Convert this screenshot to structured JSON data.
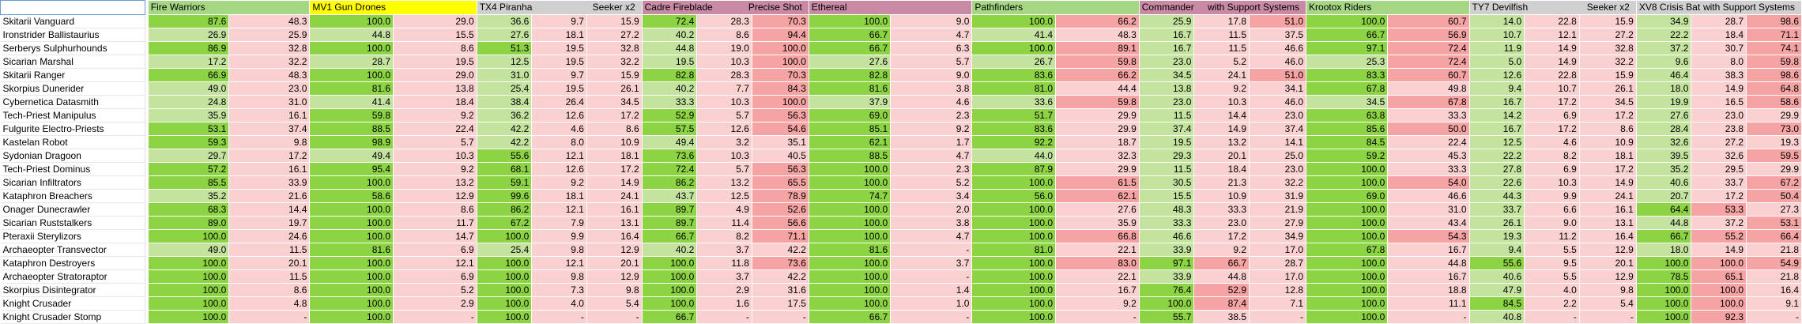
{
  "colors": {
    "win_main": "#8dd445",
    "win_light": "#c4e39f",
    "loss_main": "#f5a3a3",
    "loss_light": "#fbd0d0",
    "header_green": "#a6d785",
    "header_yellow": "#ffff00",
    "header_gray": "#d0d0d0",
    "header_pink": "#c98aa6"
  },
  "header": {
    "groups": [
      {
        "name": "Fire Warriors",
        "sub": "",
        "color": "hg"
      },
      {
        "name": "MV1 Gun Drones",
        "sub": "",
        "color": "hy"
      },
      {
        "name": "TX4 Piranha",
        "sub": "Seeker x2",
        "color": "hgr"
      },
      {
        "name": "Cadre Fireblade",
        "sub": "Precise Shot",
        "color": "hp"
      },
      {
        "name": "Ethereal",
        "sub": "",
        "color": "hp"
      },
      {
        "name": "Pathfinders",
        "sub": "",
        "color": "hg"
      },
      {
        "name": "Commander",
        "sub": "with Support Systems",
        "color": "hp"
      },
      {
        "name": "Krootox Riders",
        "sub": "",
        "color": "hg"
      },
      {
        "name": "TY7 Devilfish",
        "sub": "Seeker x2",
        "color": "hgr"
      },
      {
        "name": "XV8 Crisis Bat",
        "sub": "with Support Systems",
        "color": "hgr"
      }
    ]
  },
  "rows": [
    {
      "name": "Skitarii Vanguard",
      "v": [
        "87.6",
        "48.3",
        "100.0",
        "29.0",
        "36.6",
        "9.7",
        "15.9",
        "72.4",
        "28.3",
        "70.3",
        "100.0",
        "9.0",
        "100.0",
        "66.2",
        "25.9",
        "17.8",
        "51.0",
        "100.0",
        "60.7",
        "14.0",
        "22.8",
        "15.9",
        "34.9",
        "28.7",
        "98.6"
      ]
    },
    {
      "name": "Ironstrider Ballistaurius",
      "v": [
        "26.9",
        "25.9",
        "44.8",
        "15.5",
        "27.6",
        "18.1",
        "27.2",
        "40.2",
        "8.6",
        "94.4",
        "66.7",
        "4.7",
        "41.4",
        "48.3",
        "16.7",
        "11.5",
        "37.5",
        "66.7",
        "56.9",
        "10.7",
        "12.1",
        "27.2",
        "22.2",
        "18.4",
        "71.1"
      ]
    },
    {
      "name": "Serberys Sulphurhounds",
      "v": [
        "86.9",
        "32.8",
        "100.0",
        "8.6",
        "51.3",
        "19.5",
        "32.8",
        "44.8",
        "19.0",
        "100.0",
        "66.7",
        "6.3",
        "100.0",
        "89.1",
        "16.7",
        "11.5",
        "46.6",
        "97.1",
        "72.4",
        "11.9",
        "14.9",
        "32.8",
        "37.2",
        "30.7",
        "74.1"
      ]
    },
    {
      "name": "Sicarian Marshal",
      "v": [
        "17.2",
        "32.2",
        "28.7",
        "19.5",
        "12.5",
        "19.5",
        "32.2",
        "19.5",
        "10.3",
        "100.0",
        "27.6",
        "5.7",
        "26.7",
        "59.8",
        "23.0",
        "5.2",
        "46.0",
        "25.3",
        "72.4",
        "5.0",
        "14.9",
        "32.2",
        "9.6",
        "8.0",
        "59.8"
      ]
    },
    {
      "name": "Skitarii Ranger",
      "v": [
        "66.9",
        "48.3",
        "100.0",
        "29.0",
        "31.0",
        "9.7",
        "15.9",
        "82.8",
        "28.3",
        "70.3",
        "82.8",
        "9.0",
        "83.6",
        "66.2",
        "34.5",
        "24.1",
        "51.0",
        "83.3",
        "60.7",
        "12.6",
        "22.8",
        "15.9",
        "46.4",
        "38.3",
        "98.6"
      ]
    },
    {
      "name": "Skorpius Dunerider",
      "v": [
        "49.0",
        "23.0",
        "81.6",
        "13.8",
        "25.4",
        "19.5",
        "26.1",
        "40.2",
        "7.7",
        "84.3",
        "81.6",
        "3.8",
        "81.0",
        "44.4",
        "13.8",
        "9.2",
        "34.1",
        "67.8",
        "49.8",
        "9.4",
        "10.7",
        "26.1",
        "18.0",
        "14.9",
        "64.8"
      ]
    },
    {
      "name": "Cybernetica Datasmith",
      "v": [
        "24.8",
        "31.0",
        "41.4",
        "18.4",
        "38.4",
        "26.4",
        "34.5",
        "33.3",
        "10.3",
        "100.0",
        "37.9",
        "4.6",
        "33.6",
        "59.8",
        "23.0",
        "10.3",
        "46.0",
        "34.5",
        "67.8",
        "16.7",
        "17.2",
        "34.5",
        "19.9",
        "16.5",
        "58.6"
      ]
    },
    {
      "name": "Tech-Priest Manipulus",
      "v": [
        "35.9",
        "16.1",
        "59.8",
        "9.2",
        "36.2",
        "12.6",
        "17.2",
        "52.9",
        "5.7",
        "56.3",
        "69.0",
        "2.3",
        "51.7",
        "29.9",
        "11.5",
        "14.4",
        "23.0",
        "63.8",
        "33.3",
        "14.2",
        "6.9",
        "17.2",
        "27.6",
        "23.0",
        "29.9"
      ]
    },
    {
      "name": "Fulgurite Electro-Priests",
      "v": [
        "53.1",
        "37.4",
        "88.5",
        "22.4",
        "42.2",
        "4.6",
        "8.6",
        "57.5",
        "12.6",
        "54.6",
        "85.1",
        "9.2",
        "83.6",
        "29.9",
        "37.4",
        "14.9",
        "37.4",
        "85.6",
        "50.0",
        "16.7",
        "17.2",
        "8.6",
        "28.4",
        "23.8",
        "73.0"
      ]
    },
    {
      "name": "Kastelan Robot",
      "v": [
        "59.3",
        "9.8",
        "98.9",
        "5.7",
        "42.2",
        "8.0",
        "10.9",
        "49.4",
        "3.2",
        "35.1",
        "62.1",
        "1.7",
        "92.2",
        "18.7",
        "19.5",
        "13.2",
        "14.1",
        "84.5",
        "22.4",
        "12.5",
        "4.6",
        "10.9",
        "32.6",
        "27.2",
        "19.3"
      ]
    },
    {
      "name": "Sydonian Dragoon",
      "v": [
        "29.7",
        "17.2",
        "49.4",
        "10.3",
        "55.6",
        "12.1",
        "18.1",
        "73.6",
        "10.3",
        "40.5",
        "88.5",
        "4.7",
        "44.0",
        "32.3",
        "29.3",
        "20.1",
        "25.0",
        "59.2",
        "45.3",
        "22.2",
        "8.2",
        "18.1",
        "39.5",
        "32.6",
        "59.5"
      ]
    },
    {
      "name": "Tech-Priest Dominus",
      "v": [
        "57.2",
        "16.1",
        "95.4",
        "9.2",
        "68.1",
        "12.6",
        "17.2",
        "72.4",
        "5.7",
        "56.3",
        "100.0",
        "2.3",
        "87.9",
        "29.9",
        "11.5",
        "18.4",
        "23.0",
        "100.0",
        "33.3",
        "27.8",
        "6.9",
        "17.2",
        "35.2",
        "29.5",
        "29.9"
      ]
    },
    {
      "name": "Sicarian Infiltrators",
      "v": [
        "85.5",
        "33.9",
        "100.0",
        "13.2",
        "59.1",
        "9.2",
        "14.9",
        "86.2",
        "13.2",
        "65.5",
        "100.0",
        "5.2",
        "100.0",
        "61.5",
        "30.5",
        "21.3",
        "32.2",
        "100.0",
        "54.0",
        "22.6",
        "10.3",
        "14.9",
        "40.6",
        "33.7",
        "67.2"
      ]
    },
    {
      "name": "Kataphron Breachers",
      "v": [
        "35.2",
        "21.6",
        "58.6",
        "12.9",
        "99.6",
        "18.1",
        "24.1",
        "43.7",
        "12.5",
        "78.9",
        "74.7",
        "3.4",
        "56.0",
        "62.1",
        "15.5",
        "10.9",
        "31.9",
        "69.0",
        "46.6",
        "44.3",
        "9.9",
        "24.1",
        "20.7",
        "17.2",
        "50.4"
      ]
    },
    {
      "name": "Onager Dunecrawler",
      "v": [
        "68.3",
        "14.4",
        "100.0",
        "8.6",
        "86.2",
        "12.1",
        "16.1",
        "89.7",
        "4.9",
        "52.6",
        "100.0",
        "2.0",
        "100.0",
        "27.6",
        "48.3",
        "33.3",
        "21.9",
        "100.0",
        "31.0",
        "33.7",
        "6.6",
        "16.1",
        "64.4",
        "53.3",
        "27.3"
      ]
    },
    {
      "name": "Sicarian Ruststalkers",
      "v": [
        "89.0",
        "19.7",
        "100.0",
        "11.7",
        "67.2",
        "7.9",
        "13.1",
        "89.7",
        "11.4",
        "56.6",
        "100.0",
        "3.8",
        "100.0",
        "35.9",
        "33.3",
        "23.0",
        "27.9",
        "100.0",
        "43.4",
        "26.1",
        "9.0",
        "13.1",
        "44.8",
        "37.2",
        "53.1"
      ]
    },
    {
      "name": "Pteraxii Sterylizors",
      "v": [
        "100.0",
        "24.6",
        "100.0",
        "14.7",
        "100.0",
        "9.9",
        "16.4",
        "66.7",
        "8.2",
        "71.1",
        "100.0",
        "4.7",
        "100.0",
        "66.8",
        "46.6",
        "17.2",
        "34.9",
        "100.0",
        "54.3",
        "19.3",
        "11.2",
        "16.4",
        "66.7",
        "55.2",
        "66.4"
      ]
    },
    {
      "name": "Archaeopter Transvector",
      "v": [
        "49.0",
        "11.5",
        "81.6",
        "6.9",
        "25.4",
        "9.8",
        "12.9",
        "40.2",
        "3.7",
        "42.2",
        "81.6",
        "-",
        "81.0",
        "22.1",
        "33.9",
        "9.2",
        "17.0",
        "67.8",
        "16.7",
        "9.4",
        "5.5",
        "12.9",
        "18.0",
        "14.9",
        "21.8"
      ]
    },
    {
      "name": "Kataphron Destroyers",
      "v": [
        "100.0",
        "20.1",
        "100.0",
        "12.1",
        "100.0",
        "12.1",
        "20.1",
        "100.0",
        "11.8",
        "73.6",
        "100.0",
        "3.7",
        "100.0",
        "83.0",
        "97.1",
        "66.7",
        "28.7",
        "100.0",
        "44.8",
        "55.6",
        "9.5",
        "20.1",
        "100.0",
        "100.0",
        "54.9"
      ]
    },
    {
      "name": "Archaeopter Stratoraptor",
      "v": [
        "100.0",
        "11.5",
        "100.0",
        "6.9",
        "100.0",
        "9.8",
        "12.9",
        "100.0",
        "3.7",
        "42.2",
        "100.0",
        "-",
        "100.0",
        "22.1",
        "33.9",
        "44.8",
        "17.0",
        "100.0",
        "16.7",
        "40.6",
        "5.5",
        "12.9",
        "78.5",
        "65.1",
        "21.8"
      ]
    },
    {
      "name": "Skorpius Disintegrator",
      "v": [
        "100.0",
        "8.6",
        "100.0",
        "5.2",
        "100.0",
        "7.3",
        "9.8",
        "100.0",
        "2.9",
        "31.6",
        "100.0",
        "1.4",
        "100.0",
        "16.7",
        "76.4",
        "52.9",
        "12.8",
        "100.0",
        "18.8",
        "47.9",
        "4.0",
        "9.8",
        "100.0",
        "100.0",
        "16.4"
      ]
    },
    {
      "name": "Knight Crusader",
      "v": [
        "100.0",
        "4.8",
        "100.0",
        "2.9",
        "100.0",
        "4.0",
        "5.4",
        "100.0",
        "1.6",
        "17.5",
        "100.0",
        "1.0",
        "100.0",
        "9.2",
        "100.0",
        "87.4",
        "7.1",
        "100.0",
        "11.1",
        "84.5",
        "2.2",
        "5.4",
        "100.0",
        "100.0",
        "9.1"
      ]
    },
    {
      "name": "Knight Crusader Stomp",
      "v": [
        "100.0",
        "-",
        "100.0",
        "-",
        "100.0",
        "-",
        "-",
        "66.7",
        "-",
        "-",
        "66.7",
        "-",
        "100.0",
        "-",
        "55.7",
        "38.5",
        "-",
        "100.0",
        "-",
        "40.8",
        "-",
        "-",
        "100.0",
        "92.3",
        "-"
      ]
    }
  ]
}
